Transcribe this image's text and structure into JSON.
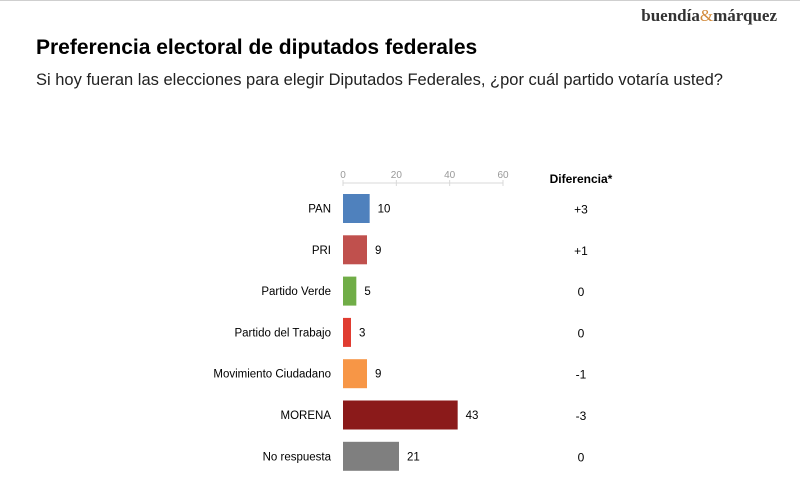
{
  "brand": {
    "part1": "buendía",
    "amp": "&",
    "part2": "márquez"
  },
  "header": {
    "title": "Preferencia electoral de diputados federales",
    "subtitle": "Si hoy fueran las elecciones para elegir Diputados Federales, ¿por cuál partido votaría usted?"
  },
  "chart_data": {
    "type": "bar",
    "orientation": "horizontal",
    "categories": [
      "PAN",
      "PRI",
      "Partido Verde",
      "Partido del Trabajo",
      "Movimiento Ciudadano",
      "MORENA",
      "No respuesta"
    ],
    "values": [
      10,
      9,
      5,
      3,
      9,
      43,
      21
    ],
    "colors": [
      "#4f81bd",
      "#c0504d",
      "#70ad47",
      "#e03c31",
      "#f79646",
      "#8b1a1a",
      "#7f7f7f"
    ],
    "xlim": [
      0,
      60
    ],
    "ticks": [
      0,
      20,
      40,
      60
    ],
    "grid": false,
    "difference_header": "Diferencia*",
    "differences": [
      "+3",
      "+1",
      "0",
      "0",
      "-1",
      "-3",
      "0"
    ]
  }
}
